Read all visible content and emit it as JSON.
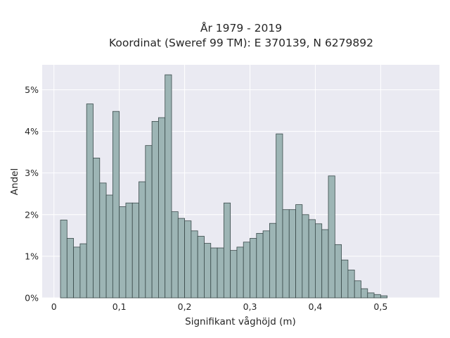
{
  "chart_data": {
    "type": "bar",
    "title_line1": "År 1979 - 2019",
    "title_line2": "Koordinat (Sweref 99 TM): E 370139, N 6279892",
    "xlabel": "Signifikant våghöjd (m)",
    "ylabel": "Andel",
    "xlim": [
      -0.018,
      0.59
    ],
    "ylim": [
      0,
      5.6
    ],
    "xticks": [
      {
        "value": 0,
        "label": "0"
      },
      {
        "value": 0.1,
        "label": "0,1"
      },
      {
        "value": 0.2,
        "label": "0,2"
      },
      {
        "value": 0.3,
        "label": "0,3"
      },
      {
        "value": 0.4,
        "label": "0,4"
      },
      {
        "value": 0.5,
        "label": "0,5"
      }
    ],
    "yticks": [
      {
        "value": 0,
        "label": "0%"
      },
      {
        "value": 1,
        "label": "1%"
      },
      {
        "value": 2,
        "label": "2%"
      },
      {
        "value": 3,
        "label": "3%"
      },
      {
        "value": 4,
        "label": "4%"
      },
      {
        "value": 5,
        "label": "5%"
      }
    ],
    "grid": true,
    "bar_color": "#9db5b5",
    "bar_edge_color": "#3a4a4a",
    "background_color": "#eaeaf2",
    "bin_start": 0.01,
    "bin_width": 0.01,
    "values": [
      1.87,
      1.43,
      1.22,
      1.3,
      4.66,
      3.36,
      2.76,
      2.47,
      4.48,
      2.19,
      2.28,
      2.28,
      2.79,
      3.66,
      4.24,
      4.33,
      5.36,
      2.07,
      1.91,
      1.85,
      1.61,
      1.48,
      1.31,
      1.2,
      1.2,
      2.28,
      1.14,
      1.22,
      1.34,
      1.43,
      1.55,
      1.61,
      1.79,
      3.94,
      2.12,
      2.12,
      2.24,
      2.0,
      1.88,
      1.78,
      1.64,
      2.93,
      1.28,
      0.91,
      0.67,
      0.41,
      0.22,
      0.12,
      0.08,
      0.05
    ]
  }
}
